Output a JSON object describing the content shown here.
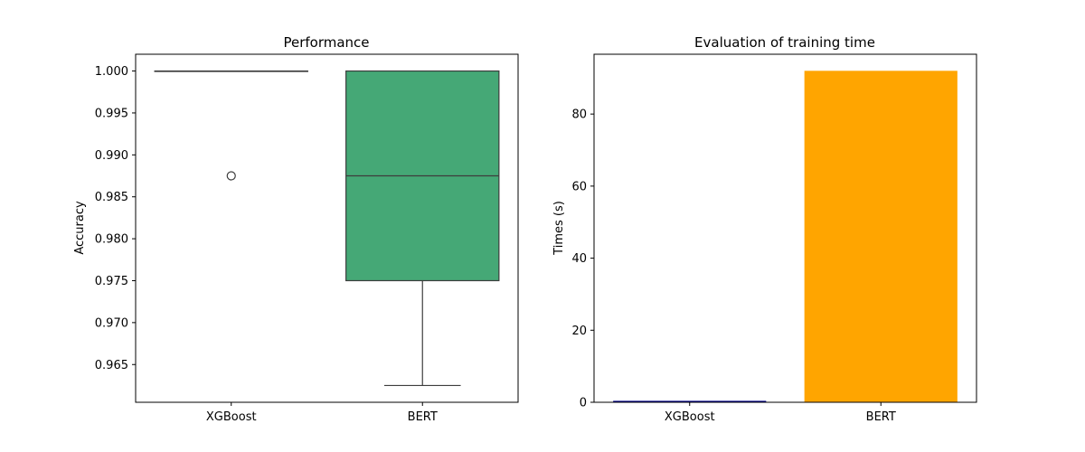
{
  "chart_data": [
    {
      "type": "box",
      "title": "Performance",
      "xlabel": "",
      "ylabel": "Accuracy",
      "categories": [
        "XGBoost",
        "BERT"
      ],
      "ylim": [
        0.9605,
        1.002
      ],
      "yticks": [
        0.965,
        0.97,
        0.975,
        0.98,
        0.985,
        0.99,
        0.995,
        1.0
      ],
      "ytick_labels": [
        "0.965",
        "0.970",
        "0.975",
        "0.980",
        "0.985",
        "0.990",
        "0.995",
        "1.000"
      ],
      "boxes": [
        {
          "name": "XGBoost",
          "whisker_low": 1.0,
          "q1": 1.0,
          "median": 1.0,
          "q3": 1.0,
          "whisker_high": 1.0,
          "outliers": [
            0.9875
          ],
          "color": "#4c72b0"
        },
        {
          "name": "BERT",
          "whisker_low": 0.9625,
          "q1": 0.975,
          "median": 0.9875,
          "q3": 1.0,
          "whisker_high": 1.0,
          "outliers": [],
          "color": "#45a876"
        }
      ],
      "grid": false
    },
    {
      "type": "bar",
      "title": "Evaluation of training time",
      "xlabel": "",
      "ylabel": "Times (s)",
      "categories": [
        "XGBoost",
        "BERT"
      ],
      "values": [
        0.4,
        92.0
      ],
      "colors": [
        "#00008b",
        "#ffa500"
      ],
      "ylim": [
        0,
        96.6
      ],
      "yticks": [
        0,
        20,
        40,
        60,
        80
      ],
      "ytick_labels": [
        "0",
        "20",
        "40",
        "60",
        "80"
      ],
      "grid": false
    }
  ]
}
